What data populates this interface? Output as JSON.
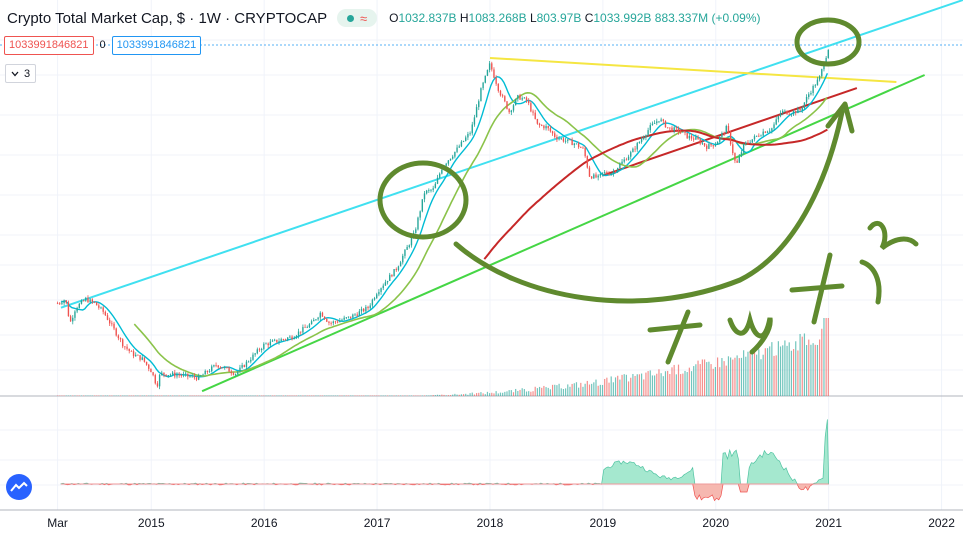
{
  "header": {
    "title": "Crypto Total Market Cap, $ · 1W · CRYPTOCAP",
    "ohlc": {
      "o_label": "O",
      "o": "1032.837B",
      "h_label": "H",
      "h": "1083.268B",
      "l_label": "L",
      "l": "803.97B",
      "c_label": "C",
      "c": "1033.992B",
      "change": "883.337M (+0.09%)"
    },
    "indicator": {
      "value_a": "1033991846821",
      "zero": "0",
      "value_b": "1033991846821"
    },
    "collapsed_count": "3"
  },
  "icons": [
    "live-dot-icon",
    "wave-icon",
    "chevron-down-icon",
    "tradingview-logo-icon"
  ],
  "colors": {
    "up": "#26a69a",
    "down": "#ef5350",
    "channel_top": "#40e0f0",
    "channel_bottom": "#45d645",
    "resistance": "#f5e642",
    "ma_long": "#c62828",
    "ma_mid": "#8bc34a",
    "ma_short": "#00bcd4",
    "annotation": "#5f8a2e"
  },
  "chart_data": {
    "type": "line",
    "series": [
      {
        "values": [
          [
            2014.17,
            14
          ],
          [
            2014.24,
            15
          ],
          [
            2014.28,
            10
          ],
          [
            2014.33,
            13
          ],
          [
            2014.42,
            15
          ],
          [
            2014.5,
            14
          ],
          [
            2014.58,
            12
          ],
          [
            2014.67,
            9
          ],
          [
            2014.75,
            7
          ],
          [
            2014.83,
            6
          ],
          [
            2014.92,
            5.5
          ],
          [
            2015.0,
            4.5
          ],
          [
            2015.05,
            3.5
          ],
          [
            2015.08,
            4.3
          ],
          [
            2015.25,
            4.2
          ],
          [
            2015.42,
            4
          ],
          [
            2015.58,
            5
          ],
          [
            2015.75,
            4.3
          ],
          [
            2015.92,
            6
          ],
          [
            2016.0,
            7
          ],
          [
            2016.25,
            8
          ],
          [
            2016.42,
            10
          ],
          [
            2016.5,
            12
          ],
          [
            2016.58,
            10
          ],
          [
            2016.75,
            11
          ],
          [
            2016.92,
            13
          ],
          [
            2017.0,
            17
          ],
          [
            2017.17,
            25
          ],
          [
            2017.33,
            45
          ],
          [
            2017.42,
            90
          ],
          [
            2017.5,
            95
          ],
          [
            2017.58,
            140
          ],
          [
            2017.67,
            170
          ],
          [
            2017.83,
            250
          ],
          [
            2017.92,
            500
          ],
          [
            2018.0,
            780
          ],
          [
            2018.08,
            500
          ],
          [
            2018.17,
            350
          ],
          [
            2018.25,
            450
          ],
          [
            2018.33,
            420
          ],
          [
            2018.42,
            280
          ],
          [
            2018.5,
            270
          ],
          [
            2018.58,
            230
          ],
          [
            2018.67,
            215
          ],
          [
            2018.75,
            205
          ],
          [
            2018.83,
            185
          ],
          [
            2018.88,
            120
          ],
          [
            2018.96,
            115
          ],
          [
            2019.0,
            125
          ],
          [
            2019.08,
            125
          ],
          [
            2019.25,
            175
          ],
          [
            2019.42,
            270
          ],
          [
            2019.5,
            310
          ],
          [
            2019.58,
            265
          ],
          [
            2019.67,
            255
          ],
          [
            2019.75,
            230
          ],
          [
            2019.83,
            220
          ],
          [
            2019.92,
            195
          ],
          [
            2020.0,
            205
          ],
          [
            2020.1,
            270
          ],
          [
            2020.18,
            140
          ],
          [
            2020.25,
            200
          ],
          [
            2020.42,
            250
          ],
          [
            2020.5,
            265
          ],
          [
            2020.58,
            350
          ],
          [
            2020.67,
            345
          ],
          [
            2020.75,
            360
          ],
          [
            2020.83,
            480
          ],
          [
            2020.92,
            620
          ],
          [
            2021.0,
            1034
          ]
        ]
      }
    ],
    "x_ticks": [
      {
        "value": 2014.17,
        "label": "Mar"
      },
      {
        "value": 2015,
        "label": "2015"
      },
      {
        "value": 2016,
        "label": "2016"
      },
      {
        "value": 2017,
        "label": "2017"
      },
      {
        "value": 2018,
        "label": "2018"
      },
      {
        "value": 2019,
        "label": "2019"
      },
      {
        "value": 2020,
        "label": "2020"
      },
      {
        "value": 2021,
        "label": "2021"
      },
      {
        "value": 2022,
        "label": "2022"
      }
    ],
    "xlim": [
      2013.66,
      2022.19
    ],
    "ylim": [
      3,
      1380
    ],
    "y_scale": "log",
    "grid": true
  }
}
